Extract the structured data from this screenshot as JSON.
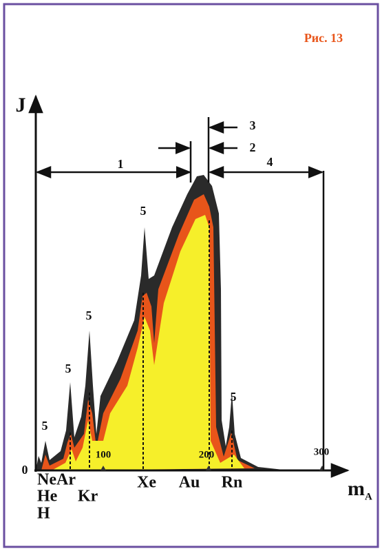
{
  "figure_label": "Рис. 13",
  "axes": {
    "y_label": "J",
    "x_label": "m",
    "x_label_subscript": "A",
    "origin": "0"
  },
  "x_tick_labels": [
    "100",
    "200",
    "300"
  ],
  "range_labels": [
    "1",
    "2",
    "3",
    "4"
  ],
  "peak_labels": [
    "5",
    "5",
    "5",
    "5",
    "5"
  ],
  "element_labels": [
    "Ne",
    "He",
    "H",
    "Ar",
    "Kr",
    "Xe",
    "Au",
    "Rn"
  ]
}
